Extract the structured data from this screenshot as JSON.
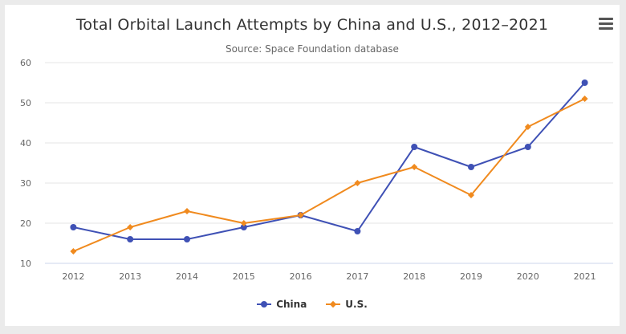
{
  "title": "Total Orbital Launch Attempts by China and U.S., 2012–2021",
  "subtitle": "Source: Space Foundation database",
  "menu_icon": "hamburger-menu-icon",
  "chart_data": {
    "type": "line",
    "title": "Total Orbital Launch Attempts by China and U.S., 2012–2021",
    "subtitle": "Source: Space Foundation database",
    "categories": [
      "2012",
      "2013",
      "2014",
      "2015",
      "2016",
      "2017",
      "2018",
      "2019",
      "2020",
      "2021"
    ],
    "ylim": [
      10,
      60
    ],
    "yticks": [
      10,
      20,
      30,
      40,
      50,
      60
    ],
    "grid": true,
    "legend_position": "bottom-center",
    "series": [
      {
        "name": "China",
        "color": "#3f51b5",
        "marker": "circle",
        "values": [
          19,
          16,
          16,
          19,
          22,
          18,
          39,
          34,
          39,
          55
        ]
      },
      {
        "name": "U.S.",
        "color": "#f08a1e",
        "marker": "diamond",
        "values": [
          13,
          19,
          23,
          20,
          22,
          30,
          34,
          27,
          44,
          51
        ]
      }
    ]
  }
}
